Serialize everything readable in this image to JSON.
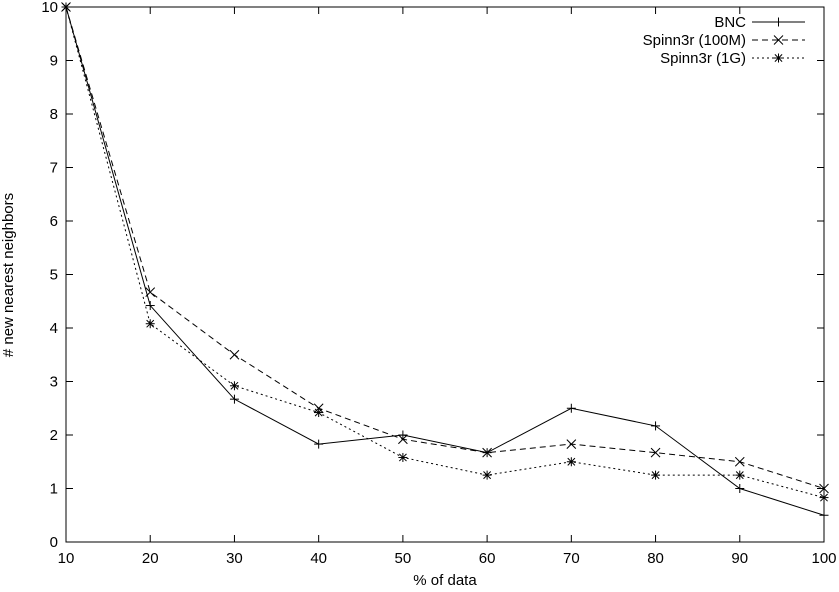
{
  "chart_data": {
    "type": "line",
    "title": "",
    "xlabel": "% of data",
    "ylabel": "# new nearest neighbors",
    "x": [
      10,
      20,
      30,
      40,
      50,
      60,
      70,
      80,
      90,
      100
    ],
    "xlim": [
      10,
      100
    ],
    "ylim": [
      0,
      10
    ],
    "xticks": [
      "10",
      "20",
      "30",
      "40",
      "50",
      "60",
      "70",
      "80",
      "90",
      "100"
    ],
    "yticks": [
      "0",
      "1",
      "2",
      "3",
      "4",
      "5",
      "6",
      "7",
      "8",
      "9",
      "10"
    ],
    "grid": false,
    "legend_position": "top-right",
    "series": [
      {
        "name": "BNC",
        "marker": "plus",
        "dash": "solid",
        "values": [
          10,
          4.42,
          2.67,
          1.83,
          2.0,
          1.67,
          2.5,
          2.17,
          1.0,
          0.5
        ]
      },
      {
        "name": "Spinn3r (100M)",
        "marker": "cross",
        "dash": "dashed",
        "values": [
          10,
          4.67,
          3.5,
          2.5,
          1.92,
          1.67,
          1.83,
          1.67,
          1.5,
          1.0
        ]
      },
      {
        "name": "Spinn3r (1G)",
        "marker": "star",
        "dash": "dotted",
        "values": [
          10,
          4.08,
          2.92,
          2.42,
          1.58,
          1.25,
          1.5,
          1.25,
          1.25,
          0.83
        ]
      }
    ]
  }
}
